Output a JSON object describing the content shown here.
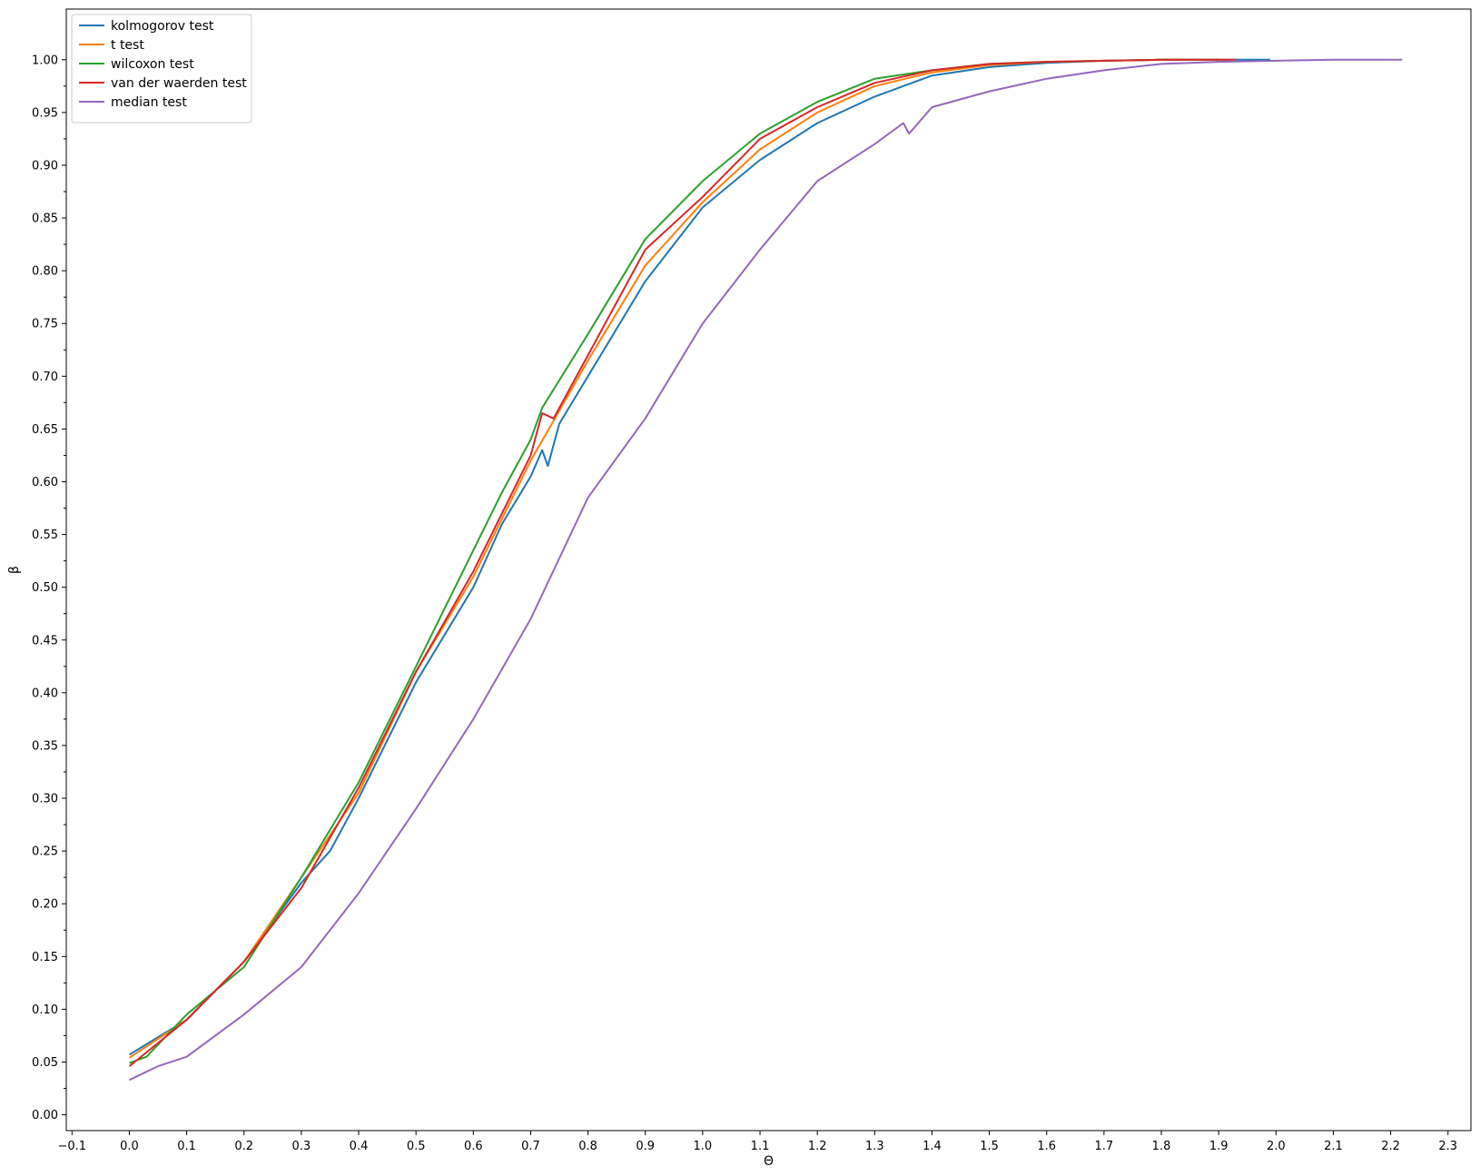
{
  "chart_data": {
    "type": "line",
    "xlabel": "Θ",
    "ylabel": "β",
    "xlim": [
      -0.11,
      2.34
    ],
    "ylim": [
      -0.015,
      1.048
    ],
    "xticks": [
      "−0.1",
      "0.0",
      "0.1",
      "0.2",
      "0.3",
      "0.4",
      "0.5",
      "0.6",
      "0.7",
      "0.8",
      "0.9",
      "1.0",
      "1.1",
      "1.2",
      "1.3",
      "1.4",
      "1.5",
      "1.6",
      "1.7",
      "1.8",
      "1.9",
      "2.0",
      "2.1",
      "2.2",
      "2.3"
    ],
    "xtick_values": [
      -0.1,
      0.0,
      0.1,
      0.2,
      0.3,
      0.4,
      0.5,
      0.6,
      0.7,
      0.8,
      0.9,
      1.0,
      1.1,
      1.2,
      1.3,
      1.4,
      1.5,
      1.6,
      1.7,
      1.8,
      1.9,
      2.0,
      2.1,
      2.2,
      2.3
    ],
    "yticks": [
      "0.00",
      "0.05",
      "0.10",
      "0.15",
      "0.20",
      "0.25",
      "0.30",
      "0.35",
      "0.40",
      "0.45",
      "0.50",
      "0.55",
      "0.60",
      "0.65",
      "0.70",
      "0.75",
      "0.80",
      "0.85",
      "0.90",
      "0.95",
      "1.00"
    ],
    "ytick_values": [
      0.0,
      0.05,
      0.1,
      0.15,
      0.2,
      0.25,
      0.3,
      0.35,
      0.4,
      0.45,
      0.5,
      0.55,
      0.6,
      0.65,
      0.7,
      0.75,
      0.8,
      0.85,
      0.9,
      0.95,
      1.0
    ],
    "grid": false,
    "legend_position": "top-left",
    "series": [
      {
        "name": "kolmogorov test",
        "color": "#1f77b4",
        "x": [
          0.0,
          0.1,
          0.2,
          0.3,
          0.35,
          0.4,
          0.5,
          0.6,
          0.65,
          0.7,
          0.72,
          0.73,
          0.75,
          0.8,
          0.9,
          1.0,
          1.1,
          1.2,
          1.3,
          1.4,
          1.5,
          1.6,
          1.7,
          1.8,
          1.9,
          1.99
        ],
        "y": [
          0.057,
          0.09,
          0.145,
          0.22,
          0.25,
          0.3,
          0.41,
          0.5,
          0.56,
          0.605,
          0.63,
          0.615,
          0.655,
          0.7,
          0.79,
          0.86,
          0.905,
          0.94,
          0.965,
          0.985,
          0.993,
          0.997,
          0.999,
          1.0,
          1.0,
          1.0
        ]
      },
      {
        "name": "t test",
        "color": "#ff7f0e",
        "x": [
          0.0,
          0.1,
          0.2,
          0.3,
          0.4,
          0.5,
          0.6,
          0.7,
          0.8,
          0.9,
          1.0,
          1.1,
          1.2,
          1.3,
          1.4,
          1.5,
          1.6,
          1.7,
          1.8,
          1.9
        ],
        "y": [
          0.054,
          0.09,
          0.145,
          0.225,
          0.305,
          0.42,
          0.51,
          0.62,
          0.715,
          0.805,
          0.865,
          0.915,
          0.95,
          0.975,
          0.988,
          0.995,
          0.998,
          0.999,
          1.0,
          1.0
        ]
      },
      {
        "name": "wilcoxon test",
        "color": "#2ca02c",
        "x": [
          0.0,
          0.03,
          0.1,
          0.2,
          0.3,
          0.4,
          0.5,
          0.6,
          0.65,
          0.7,
          0.72,
          0.8,
          0.9,
          1.0,
          1.1,
          1.2,
          1.3,
          1.4,
          1.5,
          1.6,
          1.7,
          1.8,
          1.9
        ],
        "y": [
          0.049,
          0.055,
          0.095,
          0.14,
          0.225,
          0.315,
          0.425,
          0.535,
          0.59,
          0.64,
          0.67,
          0.74,
          0.83,
          0.885,
          0.93,
          0.96,
          0.982,
          0.99,
          0.996,
          0.998,
          0.999,
          1.0,
          1.0
        ]
      },
      {
        "name": "van der waerden test",
        "color": "#d62728",
        "x": [
          0.0,
          0.1,
          0.2,
          0.3,
          0.4,
          0.5,
          0.6,
          0.7,
          0.72,
          0.74,
          0.8,
          0.9,
          1.0,
          1.1,
          1.2,
          1.3,
          1.4,
          1.5,
          1.6,
          1.7,
          1.8,
          1.93
        ],
        "y": [
          0.046,
          0.09,
          0.145,
          0.215,
          0.31,
          0.42,
          0.515,
          0.625,
          0.665,
          0.66,
          0.72,
          0.82,
          0.87,
          0.925,
          0.955,
          0.978,
          0.99,
          0.996,
          0.998,
          0.999,
          1.0,
          1.0
        ]
      },
      {
        "name": "median test",
        "color": "#9467bd",
        "x": [
          0.0,
          0.05,
          0.1,
          0.2,
          0.3,
          0.4,
          0.5,
          0.6,
          0.7,
          0.8,
          0.9,
          1.0,
          1.1,
          1.2,
          1.3,
          1.35,
          1.36,
          1.4,
          1.5,
          1.6,
          1.7,
          1.8,
          1.9,
          2.0,
          2.1,
          2.22
        ],
        "y": [
          0.033,
          0.046,
          0.055,
          0.095,
          0.14,
          0.21,
          0.29,
          0.375,
          0.47,
          0.585,
          0.66,
          0.75,
          0.82,
          0.885,
          0.92,
          0.94,
          0.93,
          0.955,
          0.97,
          0.982,
          0.99,
          0.996,
          0.998,
          0.999,
          1.0,
          1.0
        ]
      }
    ]
  }
}
